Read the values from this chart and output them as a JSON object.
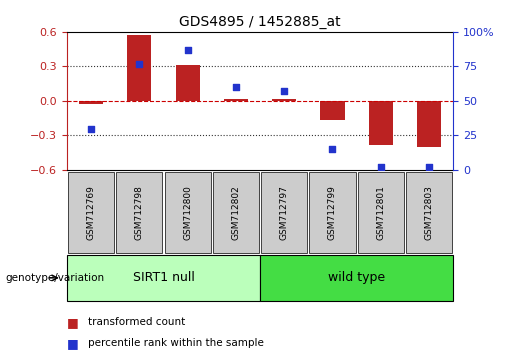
{
  "title": "GDS4895 / 1452885_at",
  "samples": [
    "GSM712769",
    "GSM712798",
    "GSM712800",
    "GSM712802",
    "GSM712797",
    "GSM712799",
    "GSM712801",
    "GSM712803"
  ],
  "bar_values": [
    -0.03,
    0.57,
    0.31,
    0.02,
    0.02,
    -0.17,
    -0.38,
    -0.4
  ],
  "dot_values": [
    30,
    77,
    87,
    60,
    57,
    15,
    2,
    2
  ],
  "bar_color": "#bb2222",
  "dot_color": "#2233cc",
  "ylim_left": [
    -0.6,
    0.6
  ],
  "ylim_right": [
    0,
    100
  ],
  "yticks_left": [
    -0.6,
    -0.3,
    0.0,
    0.3,
    0.6
  ],
  "yticks_right": [
    0,
    25,
    50,
    75,
    100
  ],
  "hline_color": "#cc0000",
  "dotted_color": "#333333",
  "group1_label": "SIRT1 null",
  "group1_count": 4,
  "group2_label": "wild type",
  "group2_count": 4,
  "group_label": "genotype/variation",
  "group1_color": "#bbffbb",
  "group2_color": "#44dd44",
  "legend_bar_label": "transformed count",
  "legend_dot_label": "percentile rank within the sample",
  "background_color": "#ffffff",
  "bar_width": 0.5,
  "tick_label_bg": "#cccccc"
}
